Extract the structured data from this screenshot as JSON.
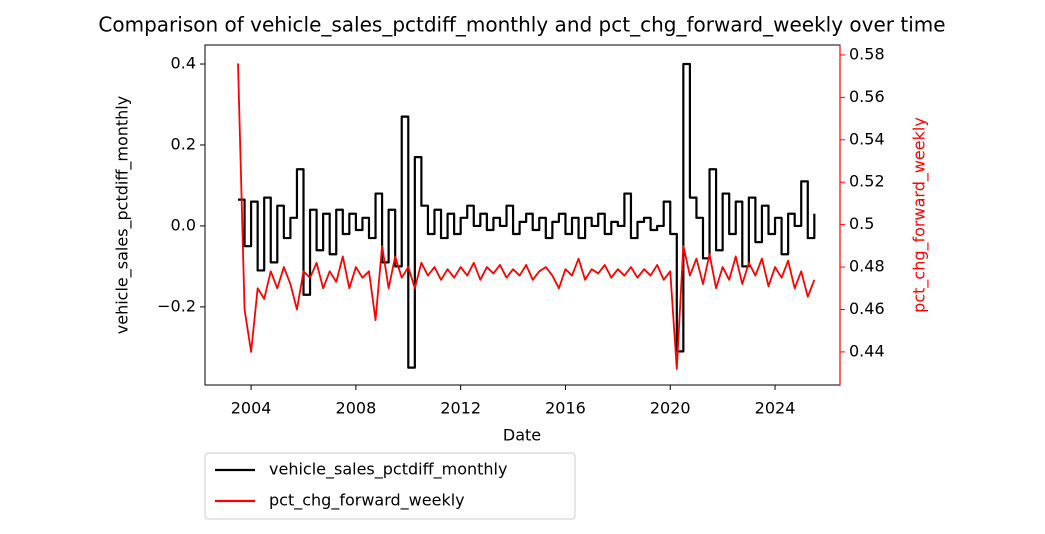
{
  "chart_data": {
    "type": "line",
    "title": "Comparison of vehicle_sales_pctdiff_monthly and pct_chg_forward_weekly over time",
    "xlabel": "Date",
    "ylabel": "vehicle_sales_pctdiff_monthly",
    "y2label": "pct_chg_forward_weekly",
    "x": [
      2003.5,
      2003.75,
      2004,
      2004.25,
      2004.5,
      2004.75,
      2005,
      2005.25,
      2005.5,
      2005.75,
      2006,
      2006.25,
      2006.5,
      2006.75,
      2007,
      2007.25,
      2007.5,
      2007.75,
      2008,
      2008.25,
      2008.5,
      2008.75,
      2009,
      2009.25,
      2009.5,
      2009.75,
      2010,
      2010.25,
      2010.5,
      2010.75,
      2011,
      2011.25,
      2011.5,
      2011.75,
      2012,
      2012.25,
      2012.5,
      2012.75,
      2013,
      2013.25,
      2013.5,
      2013.75,
      2014,
      2014.25,
      2014.5,
      2014.75,
      2015,
      2015.25,
      2015.5,
      2015.75,
      2016,
      2016.25,
      2016.5,
      2016.75,
      2017,
      2017.25,
      2017.5,
      2017.75,
      2018,
      2018.25,
      2018.5,
      2018.75,
      2019,
      2019.25,
      2019.5,
      2019.75,
      2020,
      2020.25,
      2020.5,
      2020.75,
      2021,
      2021.25,
      2021.5,
      2021.75,
      2022,
      2022.25,
      2022.5,
      2022.75,
      2023,
      2023.25,
      2023.5,
      2023.75,
      2024,
      2024.25,
      2024.5,
      2024.75,
      2025,
      2025.25,
      2025.5
    ],
    "series": [
      {
        "name": "vehicle_sales_pctdiff_monthly",
        "color": "#000000",
        "step": true,
        "values": [
          0.065,
          -0.05,
          0.06,
          -0.11,
          0.07,
          -0.09,
          0.05,
          -0.03,
          0.02,
          0.14,
          -0.17,
          0.04,
          -0.06,
          0.03,
          -0.07,
          0.04,
          -0.02,
          0.03,
          -0.01,
          0.02,
          -0.03,
          0.08,
          -0.09,
          0.04,
          -0.1,
          0.27,
          -0.35,
          0.17,
          0.05,
          -0.02,
          0.04,
          -0.03,
          0.03,
          -0.02,
          0.02,
          0.05,
          0,
          0.03,
          -0.01,
          0.02,
          0,
          0.05,
          -0.02,
          0.01,
          0.03,
          -0.01,
          0.02,
          -0.03,
          0.01,
          0.03,
          -0.02,
          0.02,
          -0.03,
          0.02,
          0,
          0.03,
          -0.02,
          0.01,
          0,
          0.08,
          -0.03,
          0.01,
          0.02,
          -0.01,
          0,
          0.06,
          -0.02,
          -0.31,
          0.4,
          0.07,
          0.02,
          -0.08,
          0.14,
          -0.06,
          0.08,
          -0.02,
          0.06,
          -0.1,
          0.07,
          -0.04,
          0.05,
          -0.02,
          0.02,
          -0.07,
          0.03,
          0,
          0.11,
          -0.03,
          0.03
        ]
      },
      {
        "name": "pct_chg_forward_weekly",
        "color": "#ff0000",
        "axis": "y2",
        "values": [
          0.576,
          0.46,
          0.44,
          0.47,
          0.465,
          0.478,
          0.47,
          0.48,
          0.472,
          0.46,
          0.478,
          0.475,
          0.482,
          0.47,
          0.478,
          0.473,
          0.485,
          0.47,
          0.48,
          0.475,
          0.478,
          0.455,
          0.49,
          0.47,
          0.485,
          0.475,
          0.48,
          0.47,
          0.482,
          0.476,
          0.48,
          0.474,
          0.479,
          0.475,
          0.48,
          0.476,
          0.482,
          0.474,
          0.48,
          0.477,
          0.481,
          0.475,
          0.479,
          0.476,
          0.481,
          0.474,
          0.478,
          0.48,
          0.476,
          0.47,
          0.479,
          0.476,
          0.484,
          0.474,
          0.479,
          0.477,
          0.481,
          0.475,
          0.479,
          0.476,
          0.48,
          0.475,
          0.479,
          0.476,
          0.481,
          0.474,
          0.478,
          0.432,
          0.49,
          0.476,
          0.484,
          0.472,
          0.486,
          0.47,
          0.48,
          0.474,
          0.485,
          0.472,
          0.482,
          0.476,
          0.484,
          0.471,
          0.48,
          0.475,
          0.483,
          0.47,
          0.478,
          0.466,
          0.474
        ]
      }
    ],
    "xlim": [
      2002.24,
      2026.48
    ],
    "xticks": [
      2004,
      2008,
      2012,
      2016,
      2020,
      2024
    ],
    "ylim": [
      -0.393,
      0.447
    ],
    "yticks": [
      {
        "value": -0.2,
        "label": "−0.2"
      },
      {
        "value": 0,
        "label": "0.0"
      },
      {
        "value": 0.2,
        "label": "0.2"
      },
      {
        "value": 0.4,
        "label": "0.4"
      }
    ],
    "y2lim": [
      0.4244,
      0.5847
    ],
    "y2ticks": [
      0.44,
      0.46,
      0.48,
      0.5,
      0.52,
      0.54,
      0.56,
      0.58
    ],
    "legend": "lower-left-outside"
  }
}
